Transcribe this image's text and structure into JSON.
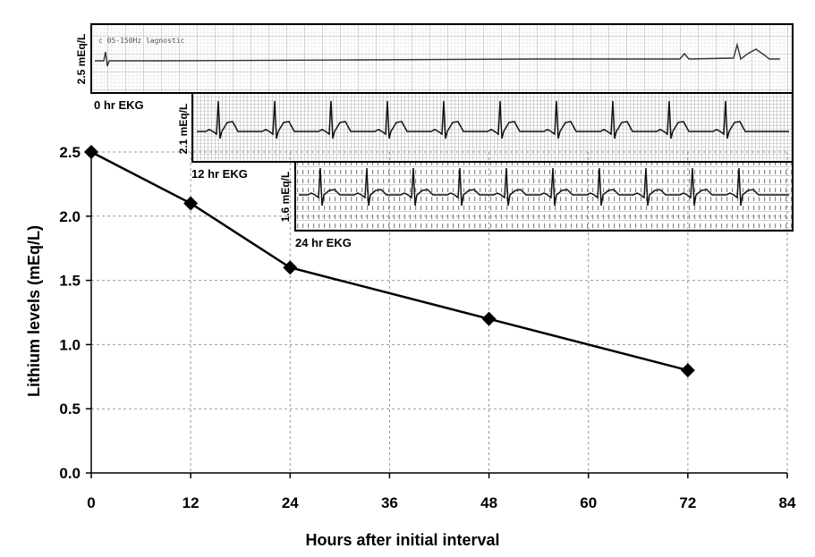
{
  "chart_data": {
    "type": "line",
    "title": "",
    "xlabel": "Hours after initial interval",
    "ylabel": "Lithium levels (mEq/L)",
    "x": [
      0,
      12,
      24,
      48,
      72
    ],
    "series": [
      {
        "values": [
          2.5,
          2.1,
          1.6,
          1.2,
          0.8
        ]
      }
    ],
    "xlim": [
      0,
      84
    ],
    "ylim": [
      0,
      2.5
    ],
    "x_ticks": [
      0,
      12,
      24,
      36,
      48,
      60,
      72,
      84
    ],
    "y_ticks": [
      0.0,
      0.5,
      1.0,
      1.5,
      2.0,
      2.5
    ],
    "y_tick_labels": [
      "0.0",
      "0.5",
      "1.0",
      "1.5",
      "2.0",
      "2.5"
    ],
    "grid": true,
    "marker": "diamond",
    "line_color": "#000000",
    "grid_color": "#999999"
  },
  "ekg_strips": [
    {
      "caption": "0 hr EKG",
      "level_label": "2.5 mEq/L",
      "header_text": "c 05-150Hz lagnostic"
    },
    {
      "caption": "12 hr EKG",
      "level_label": "2.1 mEq/L"
    },
    {
      "caption": "24 hr EKG",
      "level_label": "1.6 mEq/L"
    }
  ]
}
